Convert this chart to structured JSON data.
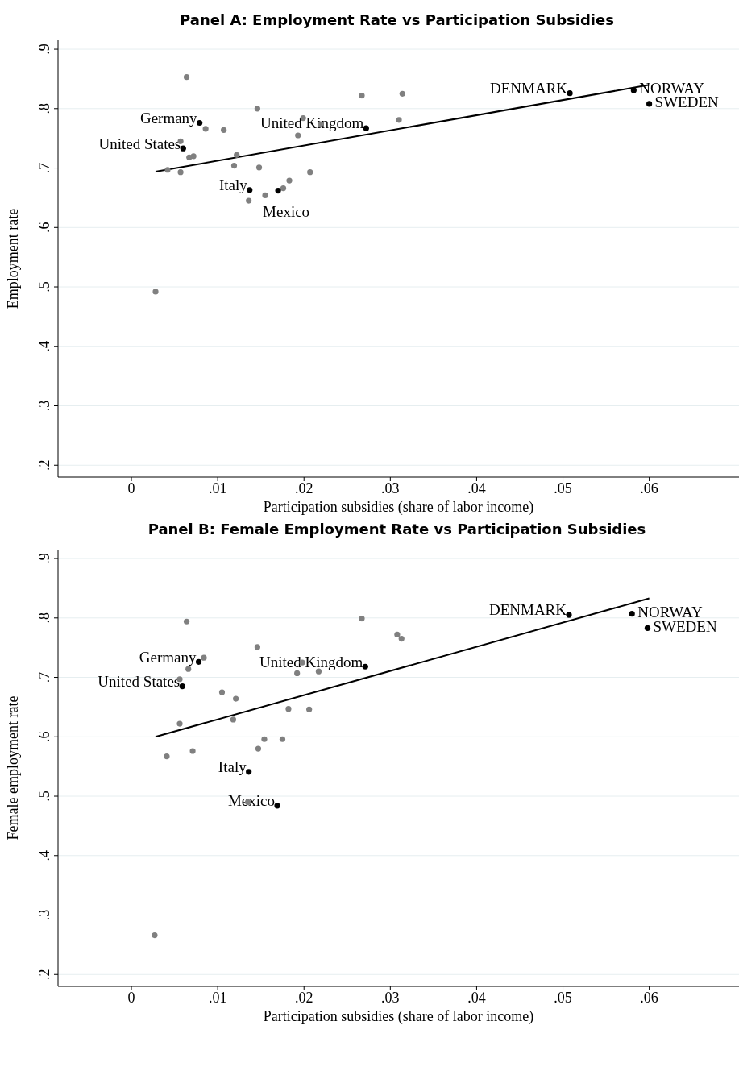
{
  "chart_data": [
    {
      "type": "scatter",
      "title": "Panel A: Employment Rate vs Participation Subsidies",
      "xlabel": "Participation subsidies (share of labor income)",
      "ylabel": "Employment rate",
      "xlim": [
        -0.0085,
        0.0704
      ],
      "ylim": [
        0.18,
        0.915
      ],
      "xticks": [
        0,
        {
          "value": 0.01,
          "label": ".01"
        },
        {
          "value": 0.02,
          "label": ".02"
        },
        {
          "value": 0.03,
          "label": ".03"
        },
        {
          "value": 0.04,
          "label": ".04"
        },
        {
          "value": 0.05,
          "label": ".05"
        },
        {
          "value": 0.06,
          "label": ".06"
        }
      ],
      "yticks": [
        {
          "value": 0.2,
          "label": ".2"
        },
        {
          "value": 0.3,
          "label": ".3"
        },
        {
          "value": 0.4,
          "label": ".4"
        },
        {
          "value": 0.5,
          "label": ".5"
        },
        {
          "value": 0.6,
          "label": ".6"
        },
        {
          "value": 0.7,
          "label": ".7"
        },
        {
          "value": 0.8,
          "label": ".8"
        },
        {
          "value": 0.9,
          "label": ".9"
        }
      ],
      "grid": "y",
      "marker": "circle",
      "legend": false,
      "series": [
        {
          "type": "scatter",
          "color": "#808080",
          "x": [
            0.0064,
            0.0146,
            0.0267,
            0.0314,
            0.031,
            0.0199,
            0.0219,
            0.0193,
            0.0086,
            0.0107,
            0.0057,
            0.0067,
            0.0072,
            0.0122,
            0.0119,
            0.0148,
            0.0042,
            0.0057,
            0.0207,
            0.0183,
            0.0176,
            0.0155,
            0.0136,
            0.0028
          ],
          "values": [
            0.853,
            0.8,
            0.822,
            0.825,
            0.781,
            0.784,
            0.774,
            0.755,
            0.766,
            0.764,
            0.745,
            0.718,
            0.72,
            0.722,
            0.704,
            0.701,
            0.697,
            0.693,
            0.693,
            0.679,
            0.666,
            0.654,
            0.645,
            0.492
          ]
        },
        {
          "type": "scatter",
          "color": "#000000",
          "x": [
            0.0079,
            0.006,
            0.0272,
            0.0137,
            0.017,
            0.0508,
            0.0582,
            0.06
          ],
          "values": [
            0.776,
            0.733,
            0.767,
            0.663,
            0.662,
            0.826,
            0.831,
            0.808
          ]
        },
        {
          "type": "line",
          "color": "#000000",
          "marker": "none",
          "x": [
            0.0028,
            0.06
          ],
          "values": [
            0.694,
            0.84
          ]
        }
      ],
      "annotations": [
        {
          "text": "Germany",
          "x": 0.0079,
          "y": 0.776
        },
        {
          "text": "United States",
          "x": 0.006,
          "y": 0.733
        },
        {
          "text": "United Kingdom",
          "x": 0.0272,
          "y": 0.767
        },
        {
          "text": "Italy",
          "x": 0.0137,
          "y": 0.663
        },
        {
          "text": "Mexico",
          "x": 0.017,
          "y": 0.662
        },
        {
          "text": "DENMARK",
          "x": 0.0508,
          "y": 0.826
        },
        {
          "text": "NORWAY",
          "x": 0.0582,
          "y": 0.831
        },
        {
          "text": "SWEDEN",
          "x": 0.06,
          "y": 0.808
        }
      ]
    },
    {
      "type": "scatter",
      "title": "Panel B: Female Employment Rate vs Participation Subsidies",
      "xlabel": "Participation subsidies (share of labor income)",
      "ylabel": "Female employment rate",
      "xlim": [
        -0.0085,
        0.0704
      ],
      "ylim": [
        0.18,
        0.915
      ],
      "xticks": [
        0,
        {
          "value": 0.01,
          "label": ".01"
        },
        {
          "value": 0.02,
          "label": ".02"
        },
        {
          "value": 0.03,
          "label": ".03"
        },
        {
          "value": 0.04,
          "label": ".04"
        },
        {
          "value": 0.05,
          "label": ".05"
        },
        {
          "value": 0.06,
          "label": ".06"
        }
      ],
      "yticks": [
        {
          "value": 0.2,
          "label": ".2"
        },
        {
          "value": 0.3,
          "label": ".3"
        },
        {
          "value": 0.4,
          "label": ".4"
        },
        {
          "value": 0.5,
          "label": ".5"
        },
        {
          "value": 0.6,
          "label": ".6"
        },
        {
          "value": 0.7,
          "label": ".7"
        },
        {
          "value": 0.8,
          "label": ".8"
        },
        {
          "value": 0.9,
          "label": ".9"
        }
      ],
      "grid": "y",
      "marker": "circle",
      "legend": false,
      "series": [
        {
          "type": "scatter",
          "color": "#808080",
          "x": [
            0.0064,
            0.0267,
            0.0308,
            0.0313,
            0.0146,
            0.0084,
            0.0066,
            0.0056,
            0.0198,
            0.0192,
            0.0217,
            0.0105,
            0.0121,
            0.0118,
            0.0182,
            0.0206,
            0.0056,
            0.0041,
            0.0071,
            0.0154,
            0.0147,
            0.0175,
            0.0135,
            0.0027
          ],
          "values": [
            0.794,
            0.799,
            0.772,
            0.765,
            0.751,
            0.733,
            0.714,
            0.697,
            0.725,
            0.707,
            0.71,
            0.675,
            0.664,
            0.629,
            0.647,
            0.646,
            0.622,
            0.567,
            0.576,
            0.596,
            0.58,
            0.596,
            0.49,
            0.266
          ]
        },
        {
          "type": "scatter",
          "color": "#000000",
          "x": [
            0.0078,
            0.0059,
            0.0271,
            0.0136,
            0.0169,
            0.0507,
            0.058,
            0.0598
          ],
          "values": [
            0.726,
            0.685,
            0.718,
            0.541,
            0.484,
            0.805,
            0.807,
            0.783
          ]
        },
        {
          "type": "line",
          "color": "#000000",
          "marker": "none",
          "x": [
            0.0028,
            0.06
          ],
          "values": [
            0.6,
            0.833
          ]
        }
      ],
      "annotations": [
        {
          "text": "Germany",
          "x": 0.0078,
          "y": 0.726
        },
        {
          "text": "United States",
          "x": 0.0059,
          "y": 0.685
        },
        {
          "text": "United Kingdom",
          "x": 0.0271,
          "y": 0.718
        },
        {
          "text": "Italy",
          "x": 0.0136,
          "y": 0.541
        },
        {
          "text": "Mexico",
          "x": 0.0169,
          "y": 0.484
        },
        {
          "text": "DENMARK",
          "x": 0.0507,
          "y": 0.805
        },
        {
          "text": "NORWAY",
          "x": 0.058,
          "y": 0.807
        },
        {
          "text": "SWEDEN",
          "x": 0.0598,
          "y": 0.783
        }
      ]
    }
  ]
}
